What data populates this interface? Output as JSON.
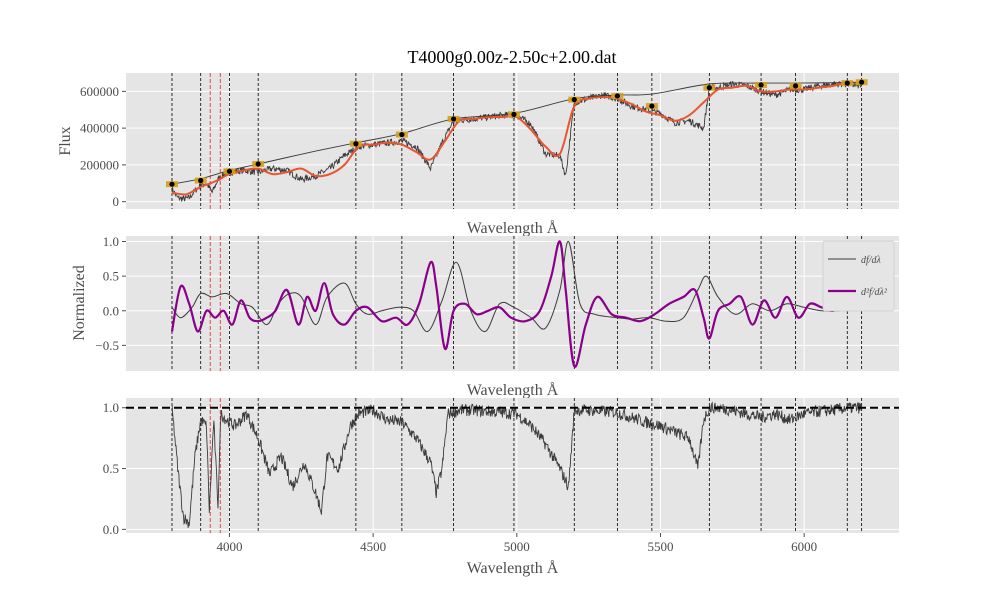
{
  "title": "T4000g0.00z-2.50c+2.00.dat",
  "chart_data": [
    {
      "type": "line",
      "panel": "flux",
      "ylabel": "Flux",
      "xlabel": "Wavelength Å",
      "xlim": [
        3640,
        6330
      ],
      "ylim": [
        -40000,
        700000
      ],
      "yticks": [
        0,
        200000,
        400000,
        600000
      ],
      "yticklabels": [
        "0",
        "200000",
        "400000",
        "600000"
      ],
      "grid": true,
      "series": [
        {
          "role": "observed spectrum (noisy)",
          "color": "#3b3b3b",
          "x": [
            3800,
            3820,
            3840,
            3860,
            3880,
            3900,
            3920,
            3940,
            3960,
            3980,
            4000,
            4050,
            4100,
            4150,
            4200,
            4250,
            4300,
            4350,
            4400,
            4450,
            4500,
            4550,
            4600,
            4650,
            4700,
            4740,
            4780,
            4850,
            4900,
            4950,
            5000,
            5050,
            5100,
            5150,
            5170,
            5200,
            5250,
            5300,
            5350,
            5400,
            5450,
            5500,
            5550,
            5600,
            5650,
            5670,
            5700,
            5750,
            5800,
            5850,
            5900,
            5950,
            6000,
            6050,
            6100,
            6150,
            6200
          ],
          "y": [
            70000,
            20000,
            15000,
            20000,
            60000,
            90000,
            100000,
            50000,
            120000,
            150000,
            160000,
            170000,
            160000,
            180000,
            170000,
            120000,
            140000,
            180000,
            250000,
            300000,
            310000,
            320000,
            330000,
            300000,
            180000,
            320000,
            440000,
            450000,
            460000,
            470000,
            470000,
            420000,
            260000,
            250000,
            140000,
            540000,
            560000,
            580000,
            560000,
            520000,
            500000,
            480000,
            430000,
            440000,
            400000,
            620000,
            620000,
            640000,
            630000,
            600000,
            580000,
            610000,
            610000,
            630000,
            640000,
            640000,
            630000
          ]
        },
        {
          "role": "smoothed fit",
          "color": "#e8552f",
          "x": [
            3800,
            3850,
            3900,
            3950,
            4000,
            4050,
            4100,
            4150,
            4200,
            4250,
            4300,
            4350,
            4400,
            4450,
            4500,
            4550,
            4600,
            4650,
            4700,
            4750,
            4800,
            4850,
            4900,
            4950,
            5000,
            5050,
            5100,
            5150,
            5200,
            5250,
            5300,
            5350,
            5400,
            5450,
            5500,
            5550,
            5600,
            5650,
            5700,
            5750,
            5800,
            5850,
            5900,
            5950,
            6000,
            6050,
            6100,
            6150,
            6200
          ],
          "y": [
            50000,
            40000,
            80000,
            110000,
            150000,
            170000,
            180000,
            150000,
            160000,
            180000,
            140000,
            150000,
            200000,
            300000,
            310000,
            320000,
            310000,
            270000,
            230000,
            330000,
            440000,
            450000,
            460000,
            460000,
            460000,
            390000,
            300000,
            260000,
            520000,
            560000,
            570000,
            560000,
            530000,
            490000,
            470000,
            440000,
            470000,
            540000,
            610000,
            620000,
            630000,
            600000,
            600000,
            610000,
            610000,
            620000,
            630000,
            650000,
            640000
          ]
        },
        {
          "role": "continuum envelope",
          "color": "#3b3b3b",
          "x": [
            3800,
            3900,
            4000,
            4100,
            4200,
            4300,
            4440,
            4600,
            4780,
            4990,
            5200,
            5350,
            5470,
            5670,
            5850,
            5970,
            6150,
            6200
          ],
          "y": [
            95000,
            125000,
            170000,
            205000,
            240000,
            275000,
            320000,
            370000,
            450000,
            480000,
            560000,
            580000,
            585000,
            640000,
            645000,
            645000,
            648000,
            650000
          ]
        }
      ],
      "markers": {
        "x": [
          3800,
          3900,
          4000,
          4100,
          4440,
          4600,
          4780,
          4990,
          5200,
          5350,
          5470,
          5670,
          5850,
          5970,
          6150,
          6200
        ],
        "y": [
          95000,
          115000,
          165000,
          205000,
          315000,
          365000,
          450000,
          475000,
          555000,
          575000,
          520000,
          620000,
          635000,
          630000,
          645000,
          650000
        ]
      }
    },
    {
      "type": "line",
      "panel": "normalized-derivatives",
      "ylabel": "Normalized",
      "xlabel": "Wavelength Å",
      "xlim": [
        3640,
        6330
      ],
      "ylim": [
        -0.87,
        1.08
      ],
      "yticks": [
        -0.5,
        0.0,
        0.5,
        1.0
      ],
      "yticklabels": [
        "−0.5",
        "0.0",
        "0.5",
        "1.0"
      ],
      "grid": true,
      "legend": {
        "placement": "upper-right",
        "entries": [
          "df/dλ",
          "d²f/dλ²"
        ]
      },
      "series": [
        {
          "name": "df/dλ",
          "color": "#3b3b3b",
          "x": [
            3800,
            3830,
            3870,
            3900,
            3940,
            3990,
            4040,
            4080,
            4130,
            4170,
            4210,
            4250,
            4300,
            4340,
            4400,
            4440,
            4480,
            4530,
            4590,
            4640,
            4690,
            4740,
            4790,
            4840,
            4890,
            4940,
            4990,
            5050,
            5100,
            5150,
            5180,
            5220,
            5270,
            5350,
            5400,
            5460,
            5520,
            5580,
            5630,
            5660,
            5700,
            5760,
            5820,
            5880,
            5940,
            6000,
            6060,
            6120,
            6180,
            6200
          ],
          "y": [
            0.05,
            -0.1,
            0.05,
            0.25,
            0.2,
            0.25,
            0.1,
            0.05,
            -0.2,
            0.1,
            0.25,
            0.2,
            -0.2,
            0.2,
            0.4,
            0.1,
            -0.05,
            0.0,
            0.05,
            0.0,
            -0.3,
            0.15,
            0.7,
            0.0,
            -0.3,
            0.1,
            0.05,
            -0.1,
            -0.25,
            0.3,
            1.0,
            0.1,
            -0.05,
            -0.1,
            -0.12,
            -0.1,
            -0.15,
            -0.1,
            0.3,
            0.5,
            0.2,
            -0.05,
            0.1,
            0.0,
            0.1,
            0.05,
            0.0,
            0.0,
            0.05,
            0.0
          ]
        },
        {
          "name": "d²f/dλ²",
          "color": "#8b008b",
          "x": [
            3800,
            3830,
            3860,
            3890,
            3920,
            3950,
            3980,
            4010,
            4040,
            4070,
            4100,
            4130,
            4160,
            4200,
            4240,
            4270,
            4300,
            4330,
            4360,
            4400,
            4440,
            4480,
            4530,
            4580,
            4620,
            4660,
            4700,
            4720,
            4750,
            4780,
            4820,
            4860,
            4900,
            4940,
            4980,
            5030,
            5080,
            5120,
            5150,
            5170,
            5200,
            5240,
            5280,
            5330,
            5380,
            5430,
            5480,
            5530,
            5580,
            5620,
            5650,
            5670,
            5700,
            5740,
            5780,
            5820,
            5860,
            5900,
            5940,
            5980,
            6020,
            6060,
            6100,
            6140,
            6180,
            6200
          ],
          "y": [
            -0.3,
            0.35,
            0.1,
            -0.3,
            0.0,
            -0.1,
            0.0,
            -0.2,
            0.15,
            -0.1,
            -0.15,
            -0.1,
            0.0,
            0.3,
            -0.2,
            0.2,
            0.0,
            0.4,
            -0.05,
            -0.2,
            0.0,
            0.05,
            -0.15,
            -0.1,
            -0.2,
            0.1,
            0.7,
            0.35,
            -0.55,
            0.0,
            0.1,
            -0.05,
            0.0,
            0.05,
            -0.1,
            -0.15,
            0.0,
            0.5,
            1.0,
            0.3,
            -0.8,
            -0.2,
            0.2,
            -0.05,
            -0.1,
            -0.15,
            -0.05,
            0.1,
            0.2,
            0.3,
            -0.1,
            -0.4,
            0.0,
            0.1,
            0.2,
            -0.2,
            0.15,
            -0.1,
            0.2,
            -0.1,
            0.1,
            0.05,
            0.0,
            0.1,
            0.05,
            0.1
          ]
        }
      ]
    },
    {
      "type": "line",
      "panel": "normalized-flux",
      "ylabel": "",
      "xlabel": "Wavelength Å",
      "xlim": [
        3640,
        6330
      ],
      "ylim": [
        -0.03,
        1.08
      ],
      "yticks": [
        0.0,
        0.5,
        1.0
      ],
      "yticklabels": [
        "0.0",
        "0.5",
        "1.0"
      ],
      "xticks": [
        4000,
        4500,
        5000,
        5500,
        6000
      ],
      "xticklabels": [
        "4000",
        "4500",
        "5000",
        "5500",
        "6000"
      ],
      "grid": true,
      "reference_line": {
        "y": 1.0,
        "style": "dashed",
        "color": "#000000"
      },
      "series": [
        {
          "role": "normalized spectrum",
          "color": "#3b3b3b",
          "x": [
            3800,
            3820,
            3840,
            3860,
            3880,
            3900,
            3920,
            3930,
            3945,
            3960,
            3970,
            3990,
            4020,
            4060,
            4100,
            4140,
            4180,
            4220,
            4260,
            4300,
            4320,
            4340,
            4380,
            4420,
            4450,
            4500,
            4550,
            4600,
            4650,
            4700,
            4720,
            4740,
            4760,
            4800,
            4850,
            4900,
            4950,
            5000,
            5050,
            5100,
            5150,
            5180,
            5200,
            5250,
            5300,
            5350,
            5400,
            5450,
            5500,
            5550,
            5600,
            5630,
            5650,
            5670,
            5700,
            5750,
            5800,
            5850,
            5900,
            5950,
            6000,
            6050,
            6100,
            6150,
            6200
          ],
          "y": [
            1.0,
            0.5,
            0.1,
            0.05,
            0.6,
            0.9,
            0.85,
            0.15,
            0.9,
            0.2,
            0.95,
            0.9,
            0.85,
            0.95,
            0.75,
            0.45,
            0.6,
            0.35,
            0.55,
            0.3,
            0.15,
            0.6,
            0.5,
            0.85,
            0.95,
            0.98,
            0.9,
            0.88,
            0.75,
            0.55,
            0.3,
            0.5,
            0.95,
            0.98,
            0.98,
            0.97,
            0.96,
            0.95,
            0.85,
            0.7,
            0.5,
            0.35,
            0.98,
            0.98,
            0.97,
            0.96,
            0.92,
            0.88,
            0.85,
            0.8,
            0.75,
            0.5,
            0.9,
            1.0,
            1.0,
            0.98,
            0.95,
            0.92,
            0.95,
            0.9,
            0.95,
            0.97,
            0.98,
            1.0,
            1.0
          ]
        }
      ]
    }
  ],
  "vlines_black": [
    3800,
    3900,
    4000,
    4100,
    4440,
    4600,
    4780,
    4990,
    5200,
    5350,
    5470,
    5670,
    5850,
    5970,
    6150,
    6200
  ],
  "vlines_red": [
    3933,
    3968
  ]
}
